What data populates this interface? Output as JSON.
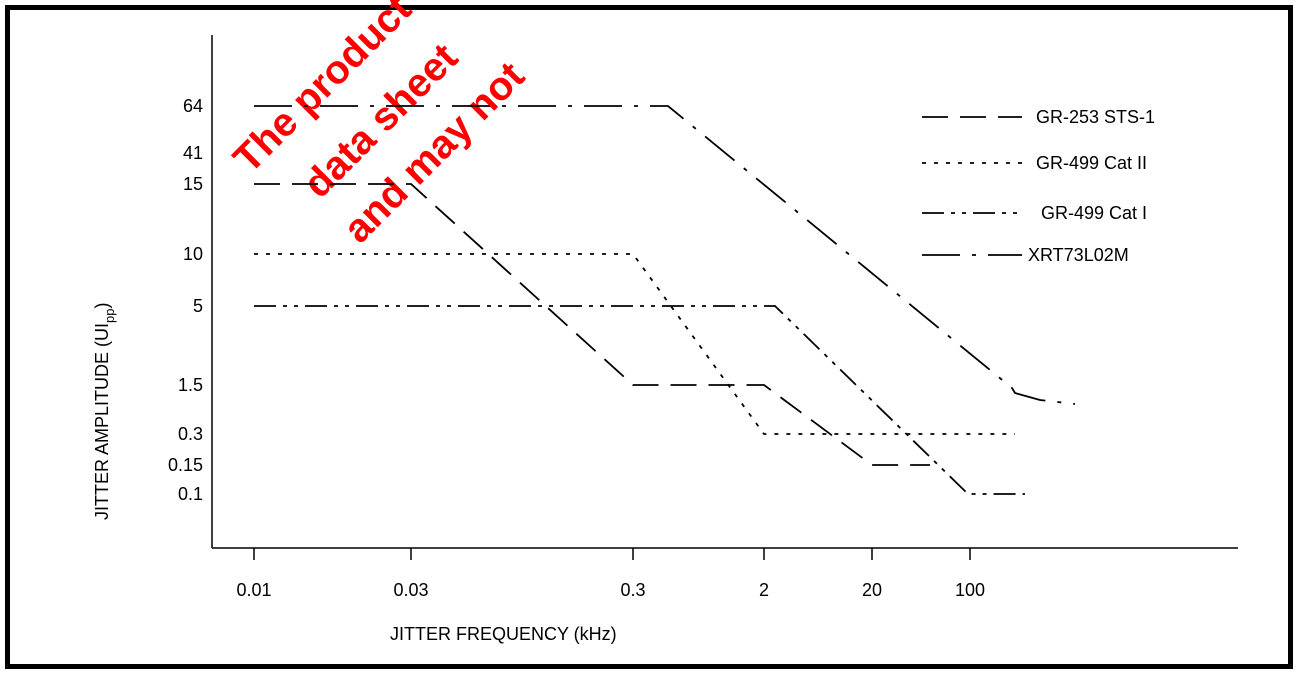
{
  "chart_data": {
    "type": "line",
    "xlabel": "JITTER FREQUENCY  (kHz)",
    "ylabel_main": "JITTER AMPLITUDE (UI",
    "ylabel_sub": "pp",
    "ylabel_close": ")",
    "x_ticks": [
      "0.01",
      "0.03",
      "0.3",
      "2",
      "20",
      "100"
    ],
    "y_ticks": [
      "64",
      "41",
      "15",
      "10",
      "5",
      "1.5",
      "0.3",
      "0.15",
      "0.1"
    ],
    "legend_position": "top-right",
    "series": [
      {
        "name": "GR-253   STS-1",
        "dash": "long-dash",
        "points": [
          [
            "0.01",
            "15"
          ],
          [
            "0.03",
            "15"
          ],
          [
            "0.3",
            "1.5"
          ],
          [
            "2",
            "1.5"
          ],
          [
            "20",
            "0.15"
          ],
          [
            "100",
            "0.15"
          ]
        ]
      },
      {
        "name": "GR-499   Cat II",
        "dash": "dot",
        "points": [
          [
            "0.01",
            "10"
          ],
          [
            "0.3",
            "10"
          ],
          [
            "2",
            "0.3"
          ],
          [
            "100",
            "0.3"
          ]
        ]
      },
      {
        "name": "GR-499   Cat I",
        "dash": "dash-dot-dot",
        "points": [
          [
            "0.01",
            "5"
          ],
          [
            "2",
            "5"
          ],
          [
            "100",
            "0.1"
          ]
        ]
      },
      {
        "name": "XRT73L02M",
        "dash": "dash-dot",
        "points": [
          [
            "0.01",
            "64"
          ],
          [
            "0.3",
            "64"
          ],
          [
            "100",
            "1.5"
          ]
        ]
      }
    ],
    "watermark_lines": [
      "The product",
      "data sheet",
      "and may not"
    ]
  }
}
